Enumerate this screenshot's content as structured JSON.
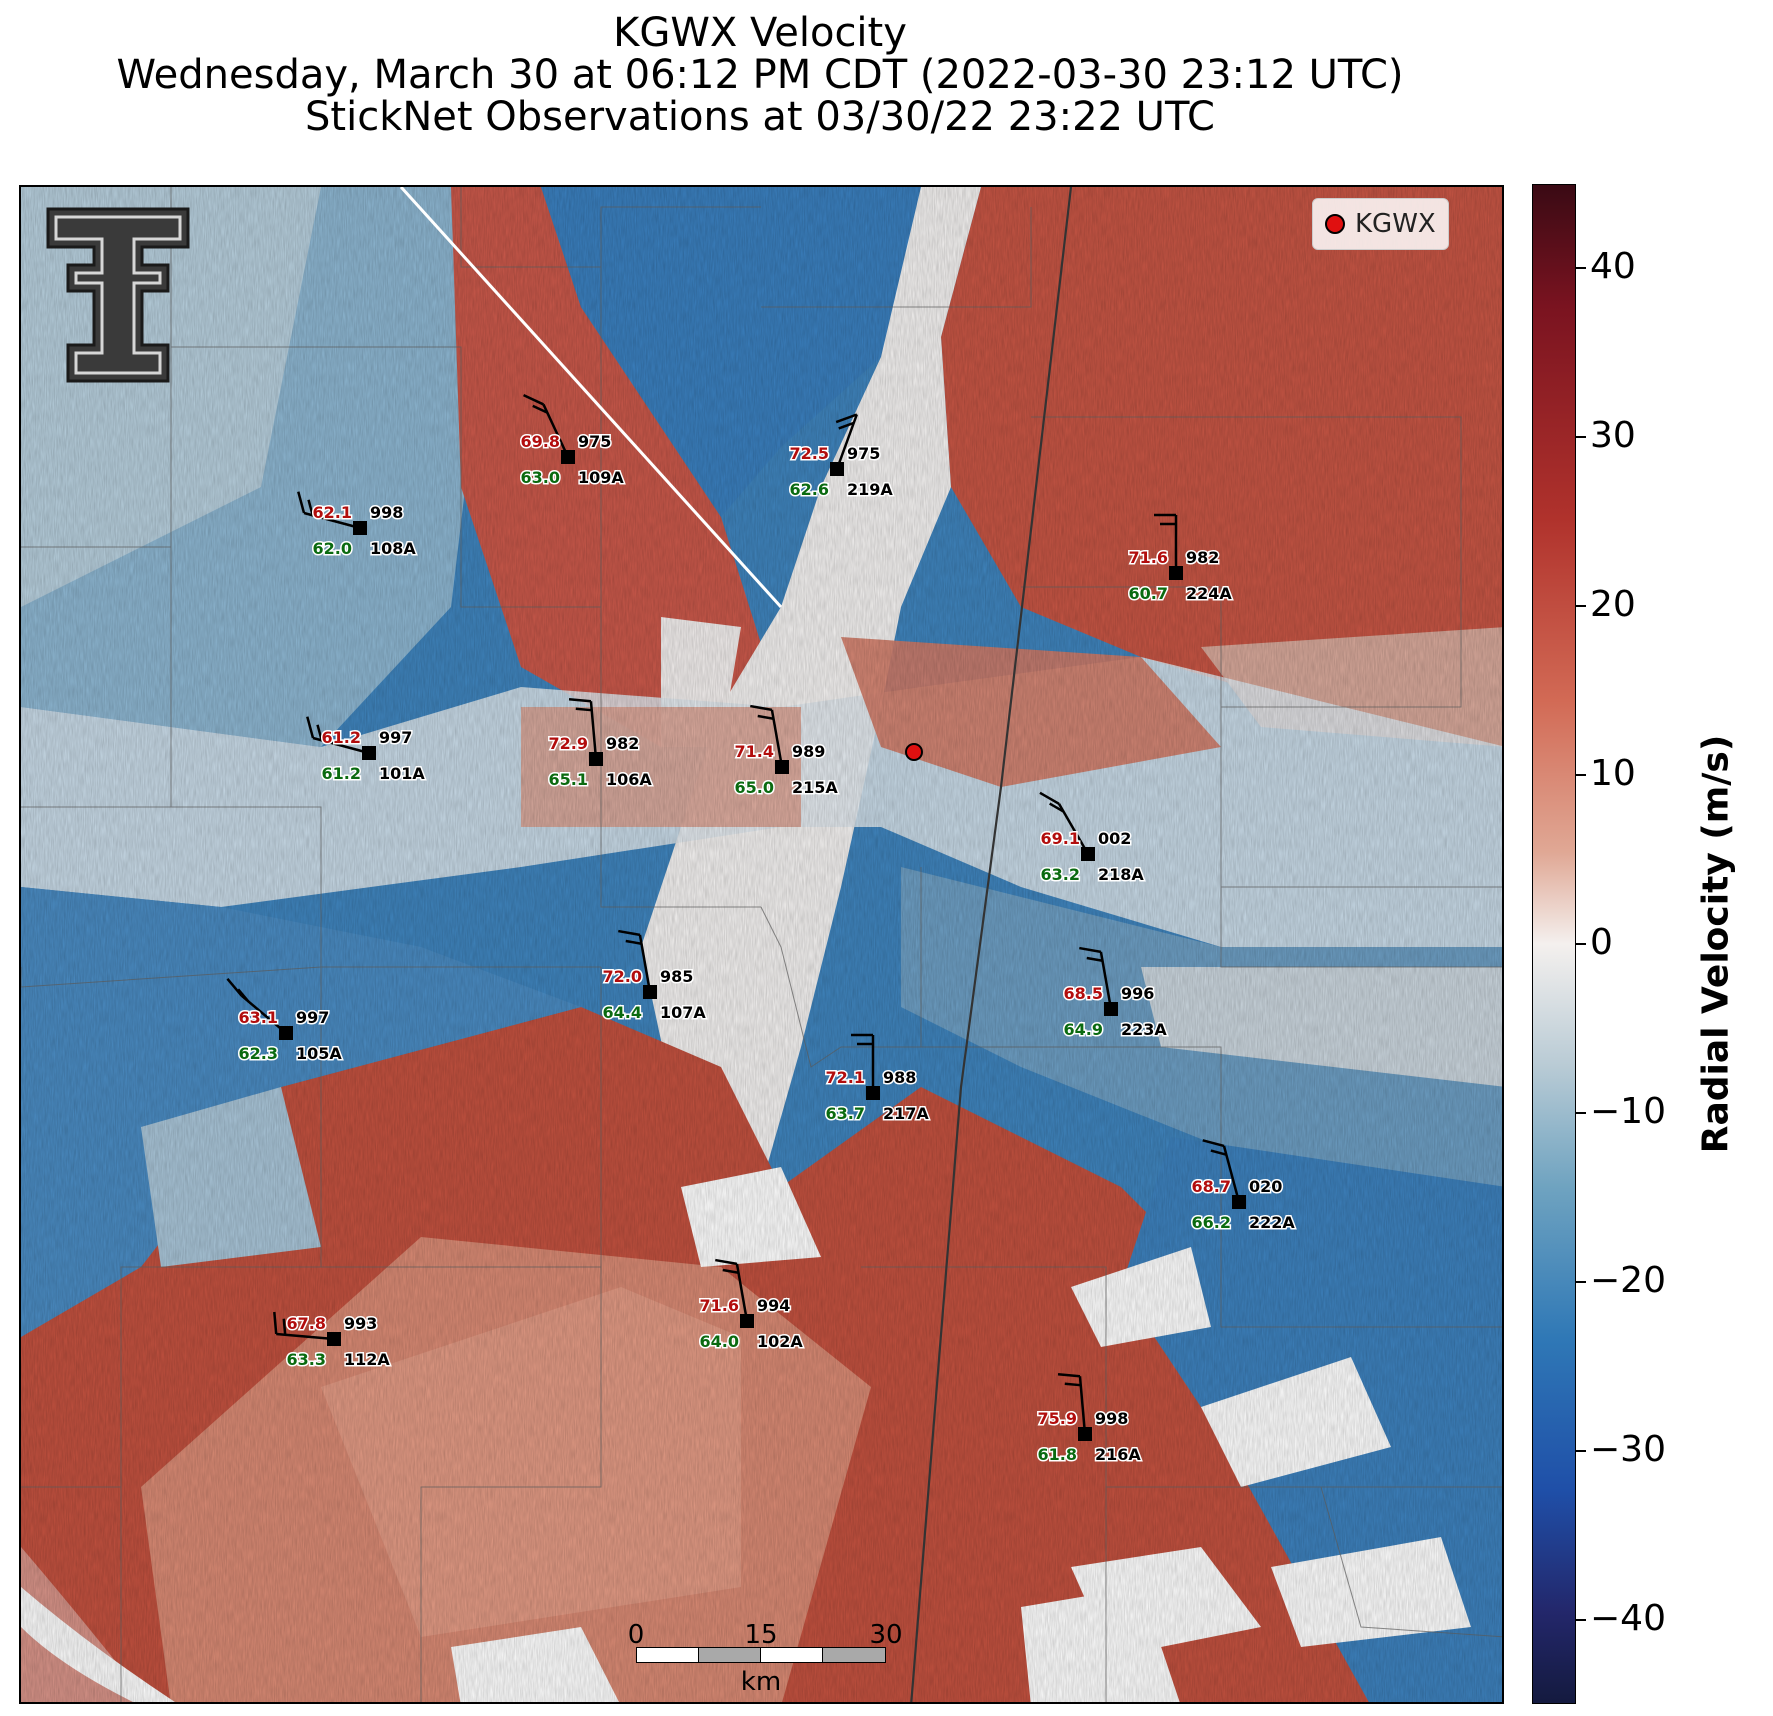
{
  "title": {
    "line1": "KGWX Velocity",
    "line2": "Wednesday, March 30 at 06:12 PM CDT (2022-03-30 23:12 UTC)",
    "line3": "StickNet Observations at 03/30/22 23:22 UTC"
  },
  "legend": {
    "label": "KGWX",
    "marker_color": "#e01010"
  },
  "colorbar": {
    "label": "Radial Velocity (m/s)",
    "range": [
      -45,
      45
    ],
    "ticks": [
      "40",
      "30",
      "20",
      "10",
      "0",
      "−10",
      "−20",
      "−30",
      "−40"
    ]
  },
  "scalebar": {
    "labels": [
      "0",
      "15",
      "30"
    ],
    "unit": "km"
  },
  "logo": {
    "name": "texas-tech-double-t-logo"
  },
  "stations": [
    {
      "id": "109A",
      "temp": "69.8",
      "dew": "63.0",
      "pres": "975"
    },
    {
      "id": "219A",
      "temp": "72.5",
      "dew": "62.6",
      "pres": "975"
    },
    {
      "id": "108A",
      "temp": "62.1",
      "dew": "62.0",
      "pres": "998"
    },
    {
      "id": "224A",
      "temp": "71.6",
      "dew": "60.7",
      "pres": "982"
    },
    {
      "id": "101A",
      "temp": "61.2",
      "dew": "61.2",
      "pres": "997"
    },
    {
      "id": "106A",
      "temp": "72.9",
      "dew": "65.1",
      "pres": "982"
    },
    {
      "id": "215A",
      "temp": "71.4",
      "dew": "65.0",
      "pres": "989"
    },
    {
      "id": "218A",
      "temp": "69.1",
      "dew": "63.2",
      "pres": "002"
    },
    {
      "id": "107A",
      "temp": "72.0",
      "dew": "64.4",
      "pres": "985"
    },
    {
      "id": "105A",
      "temp": "63.1",
      "dew": "62.3",
      "pres": "997"
    },
    {
      "id": "223A",
      "temp": "68.5",
      "dew": "64.9",
      "pres": "996"
    },
    {
      "id": "217A",
      "temp": "72.1",
      "dew": "63.7",
      "pres": "988"
    },
    {
      "id": "222A",
      "temp": "68.7",
      "dew": "66.2",
      "pres": "020"
    },
    {
      "id": "112A",
      "temp": "67.8",
      "dew": "63.3",
      "pres": "993"
    },
    {
      "id": "102A",
      "temp": "71.6",
      "dew": "64.0",
      "pres": "994"
    },
    {
      "id": "216A",
      "temp": "75.9",
      "dew": "61.8",
      "pres": "998"
    }
  ]
}
